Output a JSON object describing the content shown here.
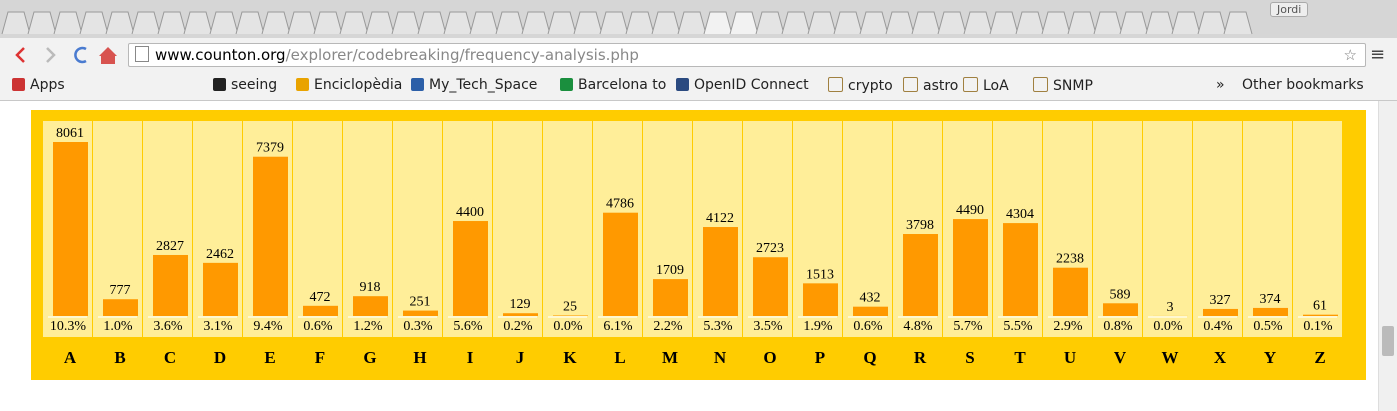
{
  "browser": {
    "user": "Jordi",
    "url_host": "www.counton.org",
    "url_path": "/explorer/codebreaking/frequency-analysis.php",
    "bookmarks": [
      "Apps",
      "seeing",
      "Enciclopèdia",
      "My_Tech_Space",
      "Barcelona to",
      "OpenID Connect",
      "crypto",
      "astro",
      "LoA",
      "SNMP"
    ],
    "overflow": "»",
    "other_bookmarks": "Other bookmarks"
  },
  "chart_data": {
    "type": "bar",
    "categories": [
      "A",
      "B",
      "C",
      "D",
      "E",
      "F",
      "G",
      "H",
      "I",
      "J",
      "K",
      "L",
      "M",
      "N",
      "O",
      "P",
      "Q",
      "R",
      "S",
      "T",
      "U",
      "V",
      "W",
      "X",
      "Y",
      "Z"
    ],
    "values": [
      8061,
      777,
      2827,
      2462,
      7379,
      472,
      918,
      251,
      4400,
      129,
      25,
      4786,
      1709,
      4122,
      2723,
      1513,
      432,
      3798,
      4490,
      4304,
      2238,
      589,
      3,
      327,
      374,
      61
    ],
    "percent_labels": [
      "10.3%",
      "1.0%",
      "3.6%",
      "3.1%",
      "9.4%",
      "0.6%",
      "1.2%",
      "0.3%",
      "5.6%",
      "0.2%",
      "0.0%",
      "6.1%",
      "2.2%",
      "5.3%",
      "3.5%",
      "1.9%",
      "0.6%",
      "4.8%",
      "5.7%",
      "5.5%",
      "2.9%",
      "0.8%",
      "0.0%",
      "0.4%",
      "0.5%",
      "0.1%"
    ],
    "color": "#ff9900"
  }
}
